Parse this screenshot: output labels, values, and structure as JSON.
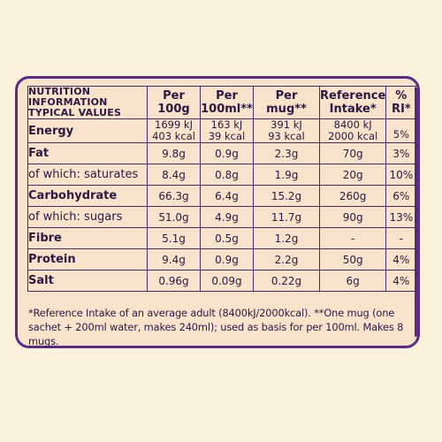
{
  "header": {
    "title_lines": [
      "NUTRITION",
      "INFORMATION",
      "TYPICAL VALUES"
    ],
    "columns": [
      {
        "line1": "Per",
        "line2": "100g"
      },
      {
        "line1": "Per",
        "line2": "100ml**"
      },
      {
        "line1": "Per",
        "line2": "mug**"
      },
      {
        "line1": "Reference",
        "line2": "Intake*"
      },
      {
        "line1": "%",
        "line2": "RI*"
      }
    ]
  },
  "rows": [
    {
      "label": "Energy",
      "bold": true,
      "values": [
        {
          "l1": "1699 kJ",
          "l2": "403 kcal"
        },
        {
          "l1": "163 kJ",
          "l2": "39 kcal"
        },
        {
          "l1": "391 kJ",
          "l2": "93 kcal"
        },
        {
          "l1": "8400 kJ",
          "l2": "2000 kcal"
        },
        {
          "l1": "",
          "l2": "5%"
        }
      ]
    },
    {
      "label": "Fat",
      "bold": true,
      "values": [
        "9.8g",
        "0.9g",
        "2.3g",
        "70g",
        "3%"
      ]
    },
    {
      "label": "of which: saturates",
      "bold": false,
      "values": [
        "8.4g",
        "0.8g",
        "1.9g",
        "20g",
        "10%"
      ]
    },
    {
      "label": "Carbohydrate",
      "bold": true,
      "values": [
        "66.3g",
        "6.4g",
        "15.2g",
        "260g",
        "6%"
      ]
    },
    {
      "label": "of which: sugars",
      "bold": false,
      "values": [
        "51.0g",
        "4.9g",
        "11.7g",
        "90g",
        "13%"
      ]
    },
    {
      "label": "Fibre",
      "bold": true,
      "values": [
        "5.1g",
        "0.5g",
        "1.2g",
        "-",
        "-"
      ]
    },
    {
      "label": "Protein",
      "bold": true,
      "values": [
        "9.4g",
        "0.9g",
        "2.2g",
        "50g",
        "4%"
      ]
    },
    {
      "label": "Salt",
      "bold": true,
      "values": [
        "0.96g",
        "0.09g",
        "0.22g",
        "6g",
        "4%"
      ]
    }
  ],
  "footnote": "*Reference Intake of an average adult (8400kJ/2000kcal). **One mug (one sachet + 200ml water, makes 240ml); used as basis for per 100ml. Makes 8 mugs.",
  "colors": {
    "background": "#fbf1dd",
    "panel": "#f8e3cc",
    "border": "#5a2d82",
    "text": "#2c1840"
  }
}
